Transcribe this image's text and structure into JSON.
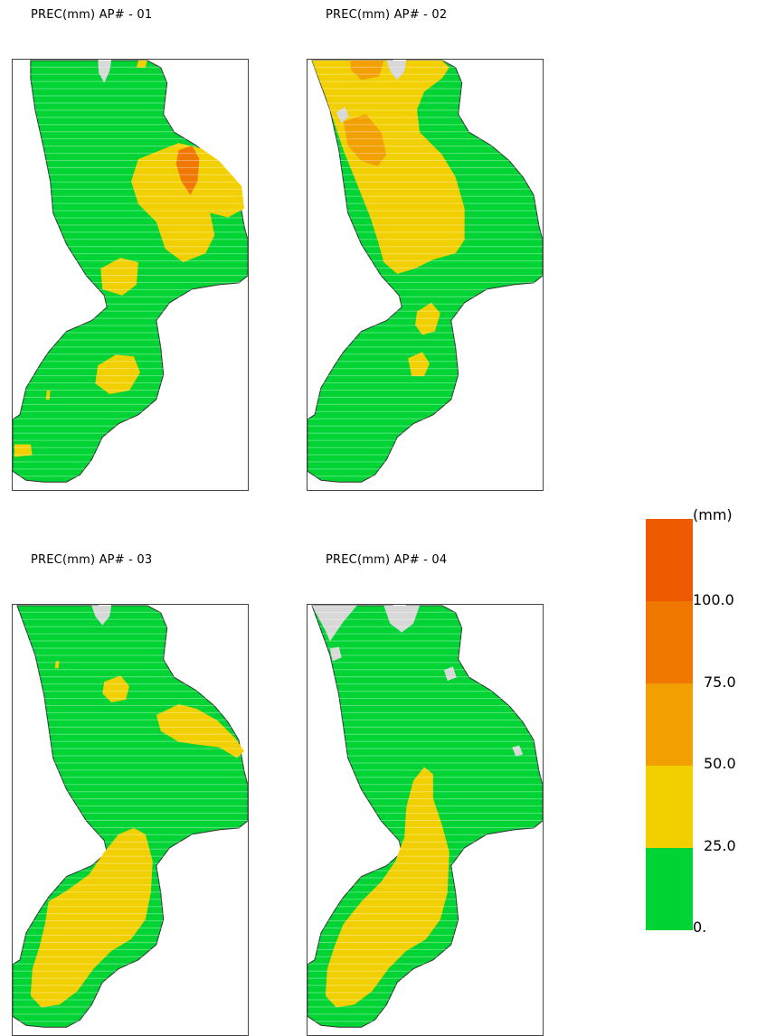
{
  "panels": [
    {
      "title": "PREC(mm) AP# - 01"
    },
    {
      "title": "PREC(mm) AP# - 02"
    },
    {
      "title": "PREC(mm) AP# - 03"
    },
    {
      "title": "PREC(mm) AP# - 04"
    }
  ],
  "colors": {
    "land_no_data": "#d8d8d8",
    "coast_line": "#333333",
    "class_0_25": "#00d435",
    "class_25_50": "#f2d000",
    "class_50_75": "#f2a000",
    "class_75_100": "#f07800",
    "class_100_plus": "#ee5a00"
  },
  "legend": {
    "unit": "(mm)",
    "labels": [
      "100.0",
      "75.0",
      "50.0",
      "25.0",
      "0."
    ]
  }
}
